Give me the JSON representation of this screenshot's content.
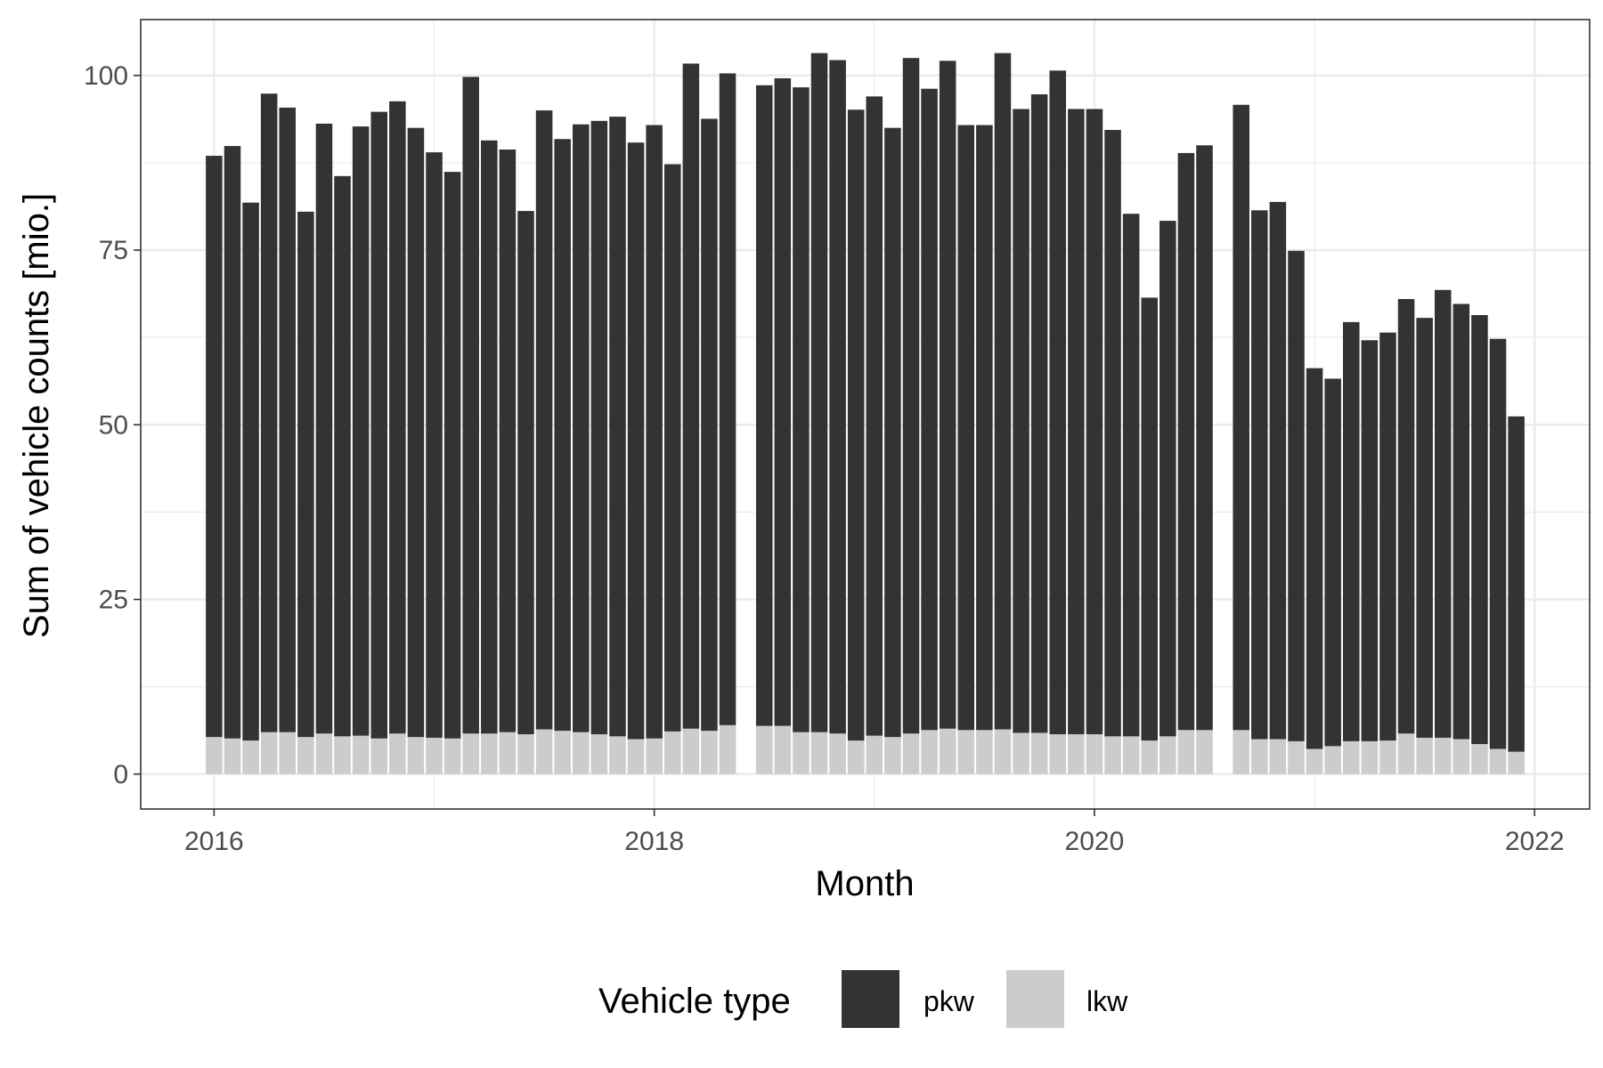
{
  "chart_data": {
    "type": "bar",
    "stacked": true,
    "xlabel": "Month",
    "ylabel": "Sum of vehicle counts [mio.]",
    "x_ticks": [
      "2016",
      "2018",
      "2020",
      "2022"
    ],
    "y_ticks": [
      0,
      25,
      50,
      75,
      100
    ],
    "ylim": [
      -5,
      108
    ],
    "xlim": [
      "2015-09",
      "2022-04"
    ],
    "grid": true,
    "legend": {
      "title": "Vehicle type",
      "position": "bottom"
    },
    "colors": {
      "pkw": "#333333",
      "lkw": "#cccccc"
    },
    "months": [
      "2016-01",
      "2016-02",
      "2016-03",
      "2016-04",
      "2016-05",
      "2016-06",
      "2016-07",
      "2016-08",
      "2016-09",
      "2016-10",
      "2016-11",
      "2016-12",
      "2017-01",
      "2017-02",
      "2017-03",
      "2017-04",
      "2017-05",
      "2017-06",
      "2017-07",
      "2017-08",
      "2017-09",
      "2017-10",
      "2017-11",
      "2017-12",
      "2018-01",
      "2018-02",
      "2018-03",
      "2018-04",
      "2018-05",
      "2018-06",
      "2018-07",
      "2018-08",
      "2018-09",
      "2018-10",
      "2018-11",
      "2018-12",
      "2019-01",
      "2019-02",
      "2019-03",
      "2019-04",
      "2019-05",
      "2019-06",
      "2019-07",
      "2019-08",
      "2019-09",
      "2019-10",
      "2019-11",
      "2019-12",
      "2020-01",
      "2020-02",
      "2020-03",
      "2020-04",
      "2020-05",
      "2020-06",
      "2020-07",
      "2020-08",
      "2020-09",
      "2020-10",
      "2020-11",
      "2020-12",
      "2021-01",
      "2021-02",
      "2021-03",
      "2021-04",
      "2021-05",
      "2021-06",
      "2021-07",
      "2021-08",
      "2021-09",
      "2021-10",
      "2021-11",
      "2021-12"
    ],
    "series": [
      {
        "name": "lkw",
        "values": [
          5.3,
          5.1,
          4.8,
          6.0,
          6.0,
          5.3,
          5.8,
          5.4,
          5.5,
          5.1,
          5.8,
          5.3,
          5.2,
          5.1,
          5.8,
          5.8,
          6.0,
          5.7,
          6.4,
          6.2,
          6.0,
          5.7,
          5.4,
          5.0,
          5.1,
          6.1,
          6.5,
          6.2,
          7.0,
          null,
          6.9,
          6.9,
          6.0,
          6.0,
          5.8,
          4.8,
          5.5,
          5.3,
          5.8,
          6.3,
          6.5,
          6.3,
          6.3,
          6.4,
          5.9,
          5.9,
          5.7,
          5.7,
          5.7,
          5.4,
          5.4,
          4.8,
          5.4,
          6.3,
          6.3,
          null,
          6.3,
          5.0,
          5.0,
          4.7,
          3.6,
          4.0,
          4.7,
          4.7,
          4.8,
          5.8,
          5.2,
          5.2,
          5.0,
          4.3,
          3.6,
          3.2
        ]
      },
      {
        "name": "pkw",
        "values": [
          83.2,
          84.8,
          77.0,
          91.4,
          89.4,
          75.2,
          87.3,
          80.2,
          87.2,
          89.7,
          90.5,
          87.2,
          83.8,
          81.1,
          94.0,
          84.9,
          83.4,
          74.9,
          88.6,
          84.7,
          87.0,
          87.8,
          88.7,
          85.4,
          87.8,
          81.2,
          95.2,
          87.6,
          93.3,
          null,
          91.7,
          92.7,
          92.3,
          97.2,
          96.4,
          90.3,
          91.5,
          87.2,
          96.7,
          91.8,
          95.6,
          86.6,
          86.6,
          96.8,
          89.3,
          91.4,
          95.0,
          89.5,
          89.5,
          86.8,
          74.8,
          63.4,
          73.8,
          82.6,
          83.7,
          null,
          89.5,
          75.7,
          76.9,
          70.2,
          54.5,
          52.6,
          60.0,
          57.4,
          58.4,
          62.2,
          60.1,
          64.1,
          62.3,
          61.4,
          58.7,
          48.0
        ]
      }
    ]
  }
}
